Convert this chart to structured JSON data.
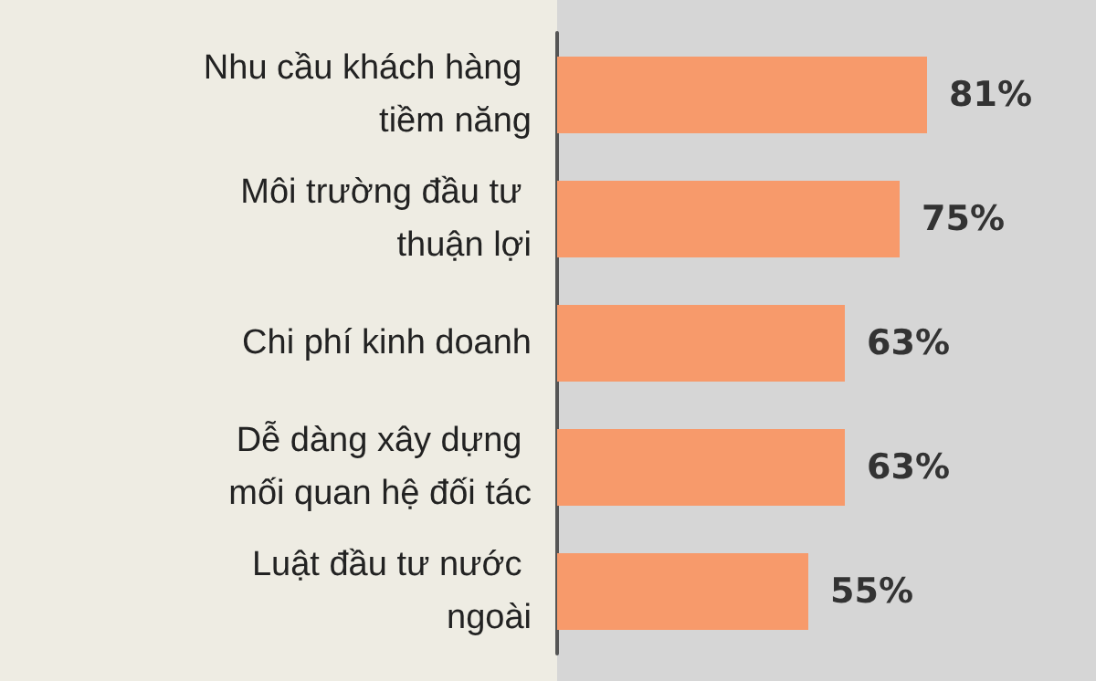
{
  "chart_data": {
    "type": "bar",
    "orientation": "horizontal",
    "categories": [
      "Nhu cầu khách hàng tiềm năng",
      "Môi trường đầu tư thuận lợi",
      "Chi phí kinh doanh",
      "Dễ dàng xây dựng mối quan hệ đối tác",
      "Luật đầu tư nước ngoài"
    ],
    "values": [
      81,
      75,
      63,
      63,
      55
    ],
    "value_labels": [
      "81%",
      "75%",
      "63%",
      "63%",
      "55%"
    ],
    "color": "#f79a6b"
  }
}
